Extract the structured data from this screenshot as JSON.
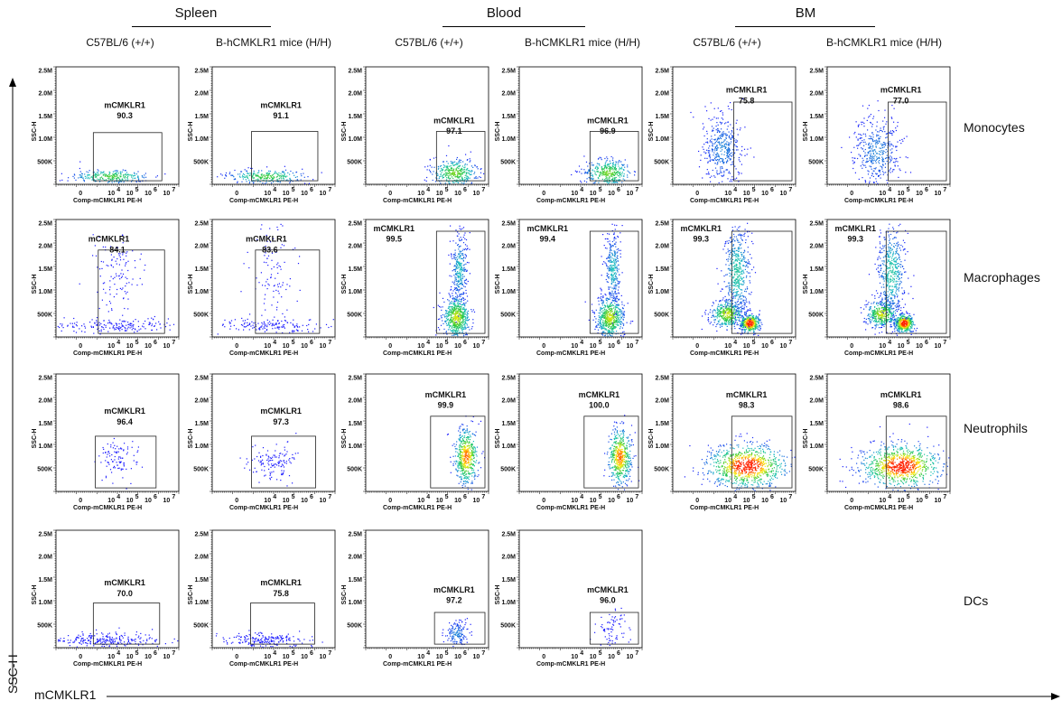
{
  "tissues": [
    "Spleen",
    "Blood",
    "BM"
  ],
  "column_headers": [
    "C57BL/6 (+/+)",
    "B-hCMKLR1 mice (H/H)",
    "C57BL/6 (+/+)",
    "B-hCMKLR1 mice (H/H)",
    "C57BL/6 (+/+)",
    "B-hCMKLR1 mice (H/H)"
  ],
  "row_labels": [
    "Monocytes",
    "Macrophages",
    "Neutrophils",
    "DCs"
  ],
  "global_axes": {
    "xlabel": "mCMKLR1",
    "ylabel": "SSC-H"
  },
  "chart_data": {
    "type": "scatter",
    "subtype": "flow-cytometry-density-grid",
    "panel_xlabel": "Comp-mCMKLR1 PE-H",
    "panel_ylabel": "SSC-H",
    "x_ticks": [
      "0",
      "10",
      "10",
      "10",
      "10"
    ],
    "x_tick_superscripts": [
      "",
      "4",
      "5",
      "6",
      "7"
    ],
    "y_ticks": [
      "500K",
      "1.0M",
      "1.5M",
      "2.0M",
      "2.5M"
    ],
    "ylim": [
      0,
      2500000
    ],
    "gate_name": "mCMKLR1",
    "grid": false,
    "panels": [
      {
        "tissue": "Spleen",
        "strain": "C57BL/6 (+/+)",
        "cell_type": "Monocytes",
        "gate_percent": "90.3"
      },
      {
        "tissue": "Spleen",
        "strain": "B-hCMKLR1 mice (H/H)",
        "cell_type": "Monocytes",
        "gate_percent": "91.1"
      },
      {
        "tissue": "Blood",
        "strain": "C57BL/6 (+/+)",
        "cell_type": "Monocytes",
        "gate_percent": "97.1"
      },
      {
        "tissue": "Blood",
        "strain": "B-hCMKLR1 mice (H/H)",
        "cell_type": "Monocytes",
        "gate_percent": "96.9"
      },
      {
        "tissue": "BM",
        "strain": "C57BL/6 (+/+)",
        "cell_type": "Monocytes",
        "gate_percent": "75.8"
      },
      {
        "tissue": "BM",
        "strain": "B-hCMKLR1 mice (H/H)",
        "cell_type": "Monocytes",
        "gate_percent": "77.0"
      },
      {
        "tissue": "Spleen",
        "strain": "C57BL/6 (+/+)",
        "cell_type": "Macrophages",
        "gate_percent": "84.1"
      },
      {
        "tissue": "Spleen",
        "strain": "B-hCMKLR1 mice (H/H)",
        "cell_type": "Macrophages",
        "gate_percent": "83.6"
      },
      {
        "tissue": "Blood",
        "strain": "C57BL/6 (+/+)",
        "cell_type": "Macrophages",
        "gate_percent": "99.5"
      },
      {
        "tissue": "Blood",
        "strain": "B-hCMKLR1 mice (H/H)",
        "cell_type": "Macrophages",
        "gate_percent": "99.4"
      },
      {
        "tissue": "BM",
        "strain": "C57BL/6 (+/+)",
        "cell_type": "Macrophages",
        "gate_percent": "99.3"
      },
      {
        "tissue": "BM",
        "strain": "B-hCMKLR1 mice (H/H)",
        "cell_type": "Macrophages",
        "gate_percent": "99.3"
      },
      {
        "tissue": "Spleen",
        "strain": "C57BL/6 (+/+)",
        "cell_type": "Neutrophils",
        "gate_percent": "96.4"
      },
      {
        "tissue": "Spleen",
        "strain": "B-hCMKLR1 mice (H/H)",
        "cell_type": "Neutrophils",
        "gate_percent": "97.3"
      },
      {
        "tissue": "Blood",
        "strain": "C57BL/6 (+/+)",
        "cell_type": "Neutrophils",
        "gate_percent": "99.9"
      },
      {
        "tissue": "Blood",
        "strain": "B-hCMKLR1 mice (H/H)",
        "cell_type": "Neutrophils",
        "gate_percent": "100.0"
      },
      {
        "tissue": "BM",
        "strain": "C57BL/6 (+/+)",
        "cell_type": "Neutrophils",
        "gate_percent": "98.3"
      },
      {
        "tissue": "BM",
        "strain": "B-hCMKLR1 mice (H/H)",
        "cell_type": "Neutrophils",
        "gate_percent": "98.6"
      },
      {
        "tissue": "Spleen",
        "strain": "C57BL/6 (+/+)",
        "cell_type": "DCs",
        "gate_percent": "70.0"
      },
      {
        "tissue": "Spleen",
        "strain": "B-hCMKLR1 mice (H/H)",
        "cell_type": "DCs",
        "gate_percent": "75.8"
      },
      {
        "tissue": "Blood",
        "strain": "C57BL/6 (+/+)",
        "cell_type": "DCs",
        "gate_percent": "97.2"
      },
      {
        "tissue": "Blood",
        "strain": "B-hCMKLR1 mice (H/H)",
        "cell_type": "DCs",
        "gate_percent": "96.0"
      }
    ],
    "colors": {
      "low_density": "#1a1aff",
      "mid_density": "#19c0c0",
      "high_density": "#ffee00",
      "peak_density": "#ff2200"
    }
  }
}
